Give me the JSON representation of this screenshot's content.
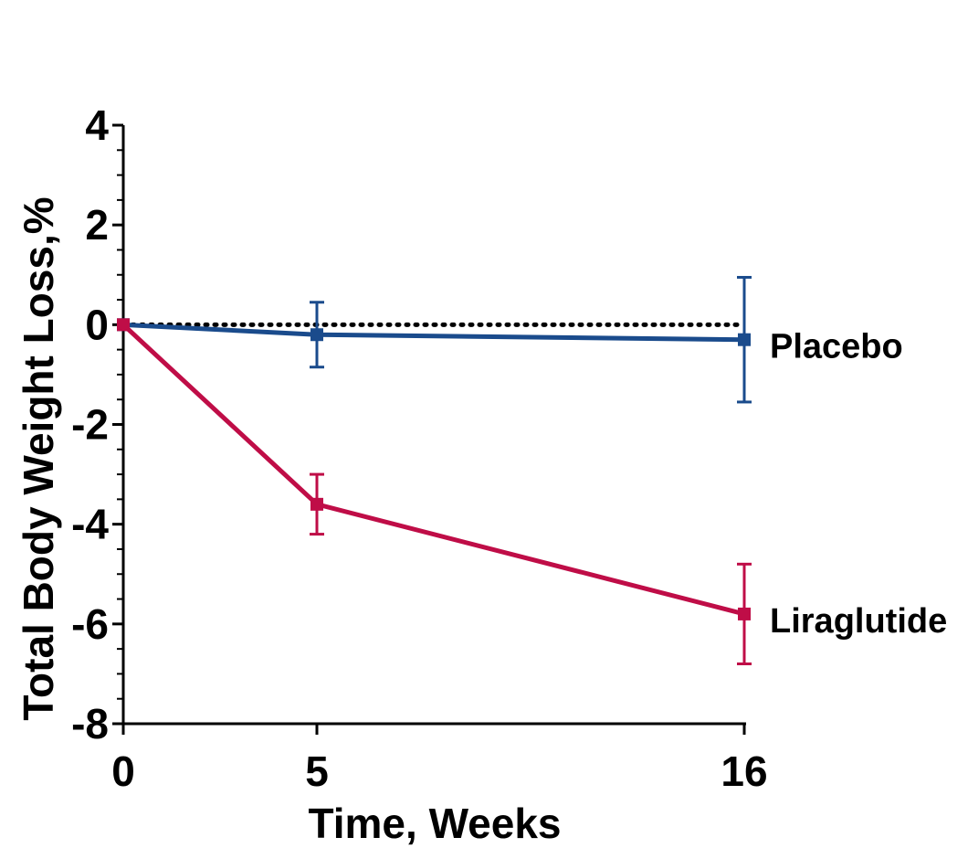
{
  "chart_data": {
    "type": "line",
    "title": "",
    "xlabel": "Time, Weeks",
    "ylabel": "Total Body Weight Loss,%",
    "x_categories": [
      "0",
      "5",
      "16"
    ],
    "ylim": [
      -8,
      4
    ],
    "y_ticks": [
      4,
      2,
      0,
      -2,
      -4,
      -6,
      -8
    ],
    "y_tick_labels": [
      "4",
      "2",
      "0",
      "-2",
      "-4",
      "-6",
      "-8"
    ],
    "y_minor_step": 0.5,
    "reference_line": {
      "y": 0,
      "style": "dotted"
    },
    "series": [
      {
        "name": "Placebo",
        "color": "#1a4b8c",
        "points": [
          {
            "x": "0",
            "y": 0.0,
            "err_low": 0.0,
            "err_high": 0.0
          },
          {
            "x": "5",
            "y": -0.2,
            "err_low": -0.85,
            "err_high": 0.45
          },
          {
            "x": "16",
            "y": -0.3,
            "err_low": -1.55,
            "err_high": 0.95
          }
        ]
      },
      {
        "name": "Liraglutide",
        "color": "#bf0d47",
        "points": [
          {
            "x": "0",
            "y": 0.0,
            "err_low": 0.0,
            "err_high": 0.0
          },
          {
            "x": "5",
            "y": -3.6,
            "err_low": -4.2,
            "err_high": -3.0
          },
          {
            "x": "16",
            "y": -5.8,
            "err_low": -6.8,
            "err_high": -4.8
          }
        ]
      }
    ]
  }
}
